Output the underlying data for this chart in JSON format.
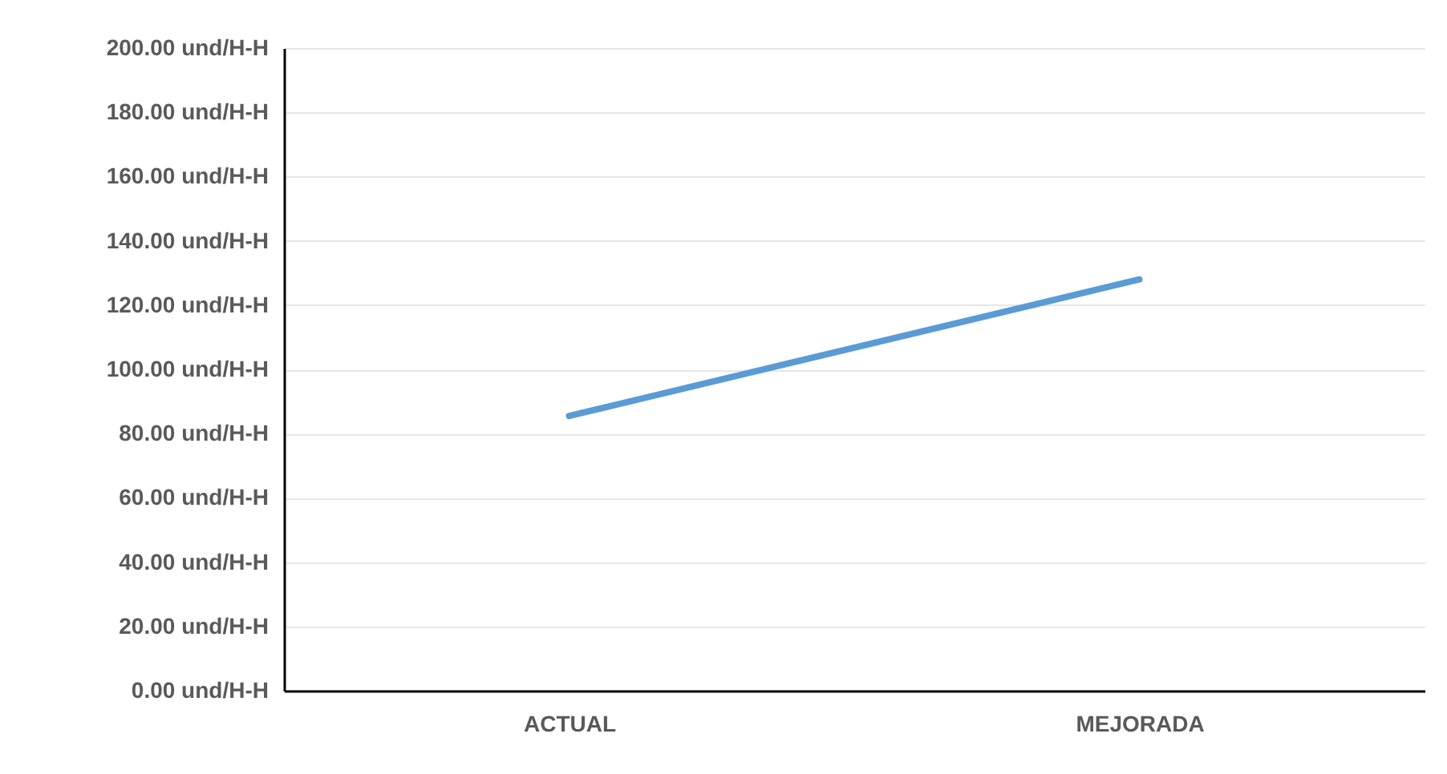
{
  "chart_data": {
    "type": "line",
    "categories": [
      "ACTUAL",
      "MEJORADA"
    ],
    "series": [
      {
        "color": "#5b9bd5",
        "values": [
          85.5,
          128
        ]
      }
    ],
    "ylim": [
      0,
      200
    ],
    "yticks": [
      {
        "value": 0,
        "label": "0.00 und/H-H"
      },
      {
        "value": 20,
        "label": "20.00 und/H-H"
      },
      {
        "value": 40,
        "label": "40.00 und/H-H"
      },
      {
        "value": 60,
        "label": "60.00 und/H-H"
      },
      {
        "value": 80,
        "label": "80.00 und/H-H"
      },
      {
        "value": 100,
        "label": "100.00 und/H-H"
      },
      {
        "value": 120,
        "label": "120.00 und/H-H"
      },
      {
        "value": 140,
        "label": "140.00 und/H-H"
      },
      {
        "value": 160,
        "label": "160.00 und/H-H"
      },
      {
        "value": 180,
        "label": "180.00 und/H-H"
      },
      {
        "value": 200,
        "label": "200.00 und/H-H"
      }
    ],
    "grid": "y",
    "marker": "none",
    "line_style": "solid",
    "legend": false
  }
}
